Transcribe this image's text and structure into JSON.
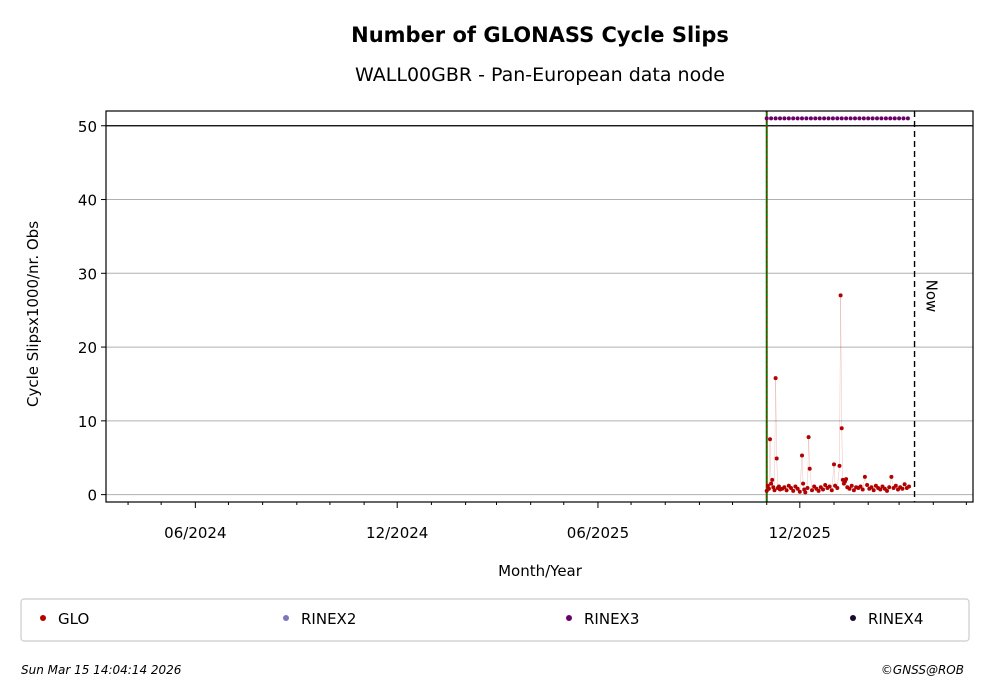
{
  "chart_data": {
    "type": "scatter",
    "title": "Number of GLONASS Cycle Slips",
    "subtitle": "WALL00GBR - Pan-European data node",
    "xlabel": "Month/Year",
    "ylabel": "Cycle Slipsx1000/nr. Obs",
    "ylim": [
      -1,
      52
    ],
    "xlim": [
      "2024-03-12",
      "2026-05-07"
    ],
    "x_ticks": [
      {
        "date": "2024-06-01",
        "label": "06/2024"
      },
      {
        "date": "2024-12-01",
        "label": "12/2024"
      },
      {
        "date": "2025-06-01",
        "label": "06/2025"
      },
      {
        "date": "2025-12-01",
        "label": "12/2025"
      }
    ],
    "y_ticks": [
      0,
      10,
      20,
      30,
      40,
      50
    ],
    "grid": "horizontal",
    "reference_lines": {
      "ceiling_value": 50,
      "start_date": "2025-11-01",
      "now_date": "2026-03-15",
      "now_label": "Now"
    },
    "series": [
      {
        "name": "GLO",
        "color": "#b30000",
        "points": [
          [
            "2025-11-01",
            0.5
          ],
          [
            "2025-11-02",
            1.2
          ],
          [
            "2025-11-03",
            0.8
          ],
          [
            "2025-11-04",
            7.5
          ],
          [
            "2025-11-05",
            1.5
          ],
          [
            "2025-11-06",
            2.0
          ],
          [
            "2025-11-07",
            1.0
          ],
          [
            "2025-11-08",
            0.6
          ],
          [
            "2025-11-09",
            15.8
          ],
          [
            "2025-11-10",
            4.9
          ],
          [
            "2025-11-11",
            0.9
          ],
          [
            "2025-11-12",
            1.1
          ],
          [
            "2025-11-13",
            0.7
          ],
          [
            "2025-11-15",
            0.8
          ],
          [
            "2025-11-17",
            1.0
          ],
          [
            "2025-11-19",
            0.6
          ],
          [
            "2025-11-21",
            1.2
          ],
          [
            "2025-11-23",
            0.9
          ],
          [
            "2025-11-25",
            0.5
          ],
          [
            "2025-11-27",
            1.1
          ],
          [
            "2025-11-29",
            0.8
          ],
          [
            "2025-12-01",
            0.4
          ],
          [
            "2025-12-03",
            5.3
          ],
          [
            "2025-12-04",
            1.5
          ],
          [
            "2025-12-05",
            0.7
          ],
          [
            "2025-12-06",
            0.3
          ],
          [
            "2025-12-08",
            0.9
          ],
          [
            "2025-12-09",
            7.8
          ],
          [
            "2025-12-10",
            3.5
          ],
          [
            "2025-12-12",
            0.6
          ],
          [
            "2025-12-14",
            1.1
          ],
          [
            "2025-12-16",
            0.8
          ],
          [
            "2025-12-18",
            0.5
          ],
          [
            "2025-12-20",
            1.0
          ],
          [
            "2025-12-22",
            0.7
          ],
          [
            "2025-12-24",
            1.3
          ],
          [
            "2025-12-26",
            0.9
          ],
          [
            "2025-12-28",
            1.1
          ],
          [
            "2025-12-30",
            0.6
          ],
          [
            "2026-01-01",
            4.1
          ],
          [
            "2026-01-02",
            1.2
          ],
          [
            "2026-01-04",
            0.9
          ],
          [
            "2026-01-06",
            3.9
          ],
          [
            "2026-01-07",
            27.0
          ],
          [
            "2026-01-08",
            9.0
          ],
          [
            "2026-01-09",
            2.0
          ],
          [
            "2026-01-10",
            1.5
          ],
          [
            "2026-01-11",
            1.8
          ],
          [
            "2026-01-12",
            2.1
          ],
          [
            "2026-01-13",
            1.0
          ],
          [
            "2026-01-15",
            0.8
          ],
          [
            "2026-01-17",
            1.2
          ],
          [
            "2026-01-19",
            0.6
          ],
          [
            "2026-01-21",
            1.0
          ],
          [
            "2026-01-23",
            0.9
          ],
          [
            "2026-01-25",
            1.1
          ],
          [
            "2026-01-27",
            0.7
          ],
          [
            "2026-01-29",
            2.4
          ],
          [
            "2026-01-31",
            1.3
          ],
          [
            "2026-02-02",
            0.8
          ],
          [
            "2026-02-04",
            1.0
          ],
          [
            "2026-02-06",
            0.6
          ],
          [
            "2026-02-08",
            1.2
          ],
          [
            "2026-02-10",
            0.9
          ],
          [
            "2026-02-12",
            0.7
          ],
          [
            "2026-02-14",
            1.1
          ],
          [
            "2026-02-16",
            0.8
          ],
          [
            "2026-02-18",
            0.5
          ],
          [
            "2026-02-20",
            1.0
          ],
          [
            "2026-02-22",
            2.4
          ],
          [
            "2026-02-24",
            0.9
          ],
          [
            "2026-02-26",
            1.2
          ],
          [
            "2026-02-28",
            0.7
          ],
          [
            "2026-03-02",
            1.0
          ],
          [
            "2026-03-04",
            0.8
          ],
          [
            "2026-03-06",
            1.4
          ],
          [
            "2026-03-08",
            0.9
          ],
          [
            "2026-03-10",
            1.1
          ]
        ]
      },
      {
        "name": "RINEX2",
        "color": "#7b76bd",
        "points": []
      },
      {
        "name": "RINEX3",
        "color": "#6a006a",
        "points": [
          [
            "2025-11-01",
            51
          ],
          [
            "2025-11-05",
            51
          ],
          [
            "2025-11-09",
            51
          ],
          [
            "2025-11-13",
            51
          ],
          [
            "2025-11-17",
            51
          ],
          [
            "2025-11-21",
            51
          ],
          [
            "2025-11-25",
            51
          ],
          [
            "2025-11-29",
            51
          ],
          [
            "2025-12-03",
            51
          ],
          [
            "2025-12-07",
            51
          ],
          [
            "2025-12-11",
            51
          ],
          [
            "2025-12-15",
            51
          ],
          [
            "2025-12-19",
            51
          ],
          [
            "2025-12-23",
            51
          ],
          [
            "2025-12-27",
            51
          ],
          [
            "2025-12-31",
            51
          ],
          [
            "2026-01-04",
            51
          ],
          [
            "2026-01-08",
            51
          ],
          [
            "2026-01-12",
            51
          ],
          [
            "2026-01-16",
            51
          ],
          [
            "2026-01-20",
            51
          ],
          [
            "2026-01-24",
            51
          ],
          [
            "2026-01-28",
            51
          ],
          [
            "2026-02-01",
            51
          ],
          [
            "2026-02-05",
            51
          ],
          [
            "2026-02-09",
            51
          ],
          [
            "2026-02-13",
            51
          ],
          [
            "2026-02-17",
            51
          ],
          [
            "2026-02-21",
            51
          ],
          [
            "2026-02-25",
            51
          ],
          [
            "2026-03-01",
            51
          ],
          [
            "2026-03-05",
            51
          ],
          [
            "2026-03-09",
            51
          ]
        ]
      },
      {
        "name": "RINEX4",
        "color": "#1a0a2e",
        "points": []
      }
    ],
    "legend_position": "bottom"
  },
  "footer": {
    "timestamp": "Sun Mar 15 14:04:14 2026",
    "credit": "©GNSS@ROB"
  }
}
